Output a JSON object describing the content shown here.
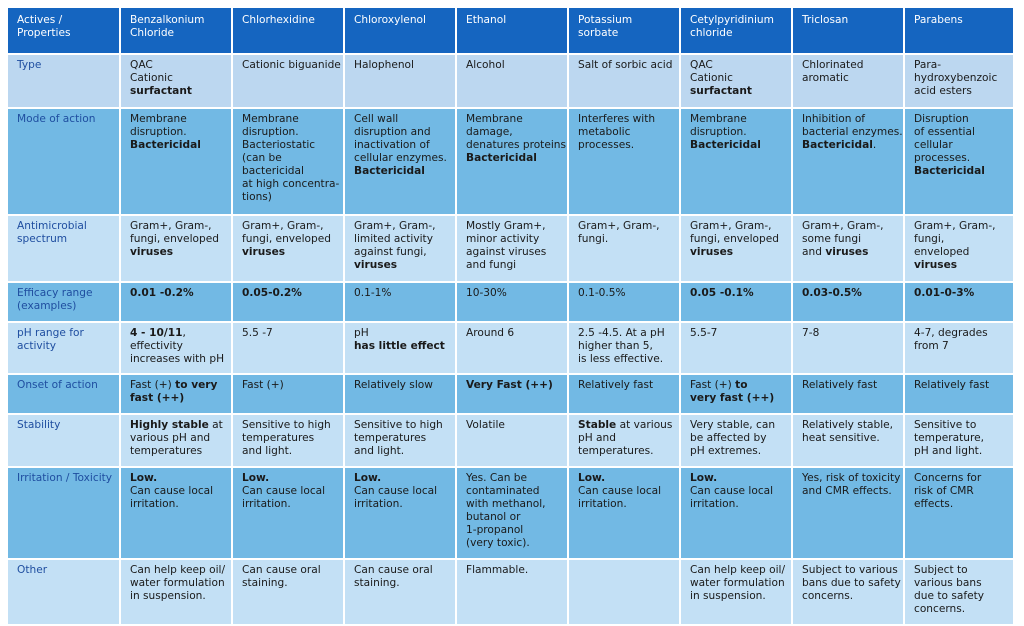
{
  "header": [
    "Actives / Properties",
    "Benzalkonium Chloride",
    "Chlorhexidine",
    "Chloroxylenol",
    "Ethanol",
    "Potassium sorbate",
    "Cetylpyridinium chloride",
    "Triclosan",
    "Parabens"
  ],
  "rows": [
    {
      "label": "Type",
      "cells": [
        [
          [
            "QAC"
          ],
          [
            "Cationic"
          ],
          [
            "**surfactant**"
          ]
        ],
        [
          [
            "Cationic biguanide"
          ]
        ],
        [
          [
            "Halophenol"
          ]
        ],
        [
          [
            "Alcohol"
          ]
        ],
        [
          [
            "Salt of sorbic acid"
          ]
        ],
        [
          [
            "QAC"
          ],
          [
            "Cationic"
          ],
          [
            "**surfactant**"
          ]
        ],
        [
          [
            "Chlorinated"
          ],
          [
            "aromatic"
          ]
        ],
        [
          [
            "Para-"
          ],
          [
            "hydroxybenzoic"
          ],
          [
            " acid esters"
          ]
        ]
      ]
    },
    {
      "label": "Mode of action",
      "cells": [
        [
          [
            "Membrane"
          ],
          [
            "disruption."
          ],
          [
            "**Bactericidal**"
          ]
        ],
        [
          [
            "Membrane"
          ],
          [
            "disruption."
          ],
          [
            "Bacteriostatic"
          ],
          [
            "(can be"
          ],
          [
            "bactericidal"
          ],
          [
            "at high concentra-"
          ],
          [
            "tions)"
          ]
        ],
        [
          [
            "Cell wall"
          ],
          [
            "disruption and"
          ],
          [
            "inactivation of"
          ],
          [
            "cellular enzymes."
          ],
          [
            "**Bactericidal**"
          ]
        ],
        [
          [
            "Membrane"
          ],
          [
            "damage,"
          ],
          [
            "denatures proteins."
          ],
          [
            "**Bactericidal**"
          ]
        ],
        [
          [
            "Interferes with"
          ],
          [
            "metabolic"
          ],
          [
            "processes."
          ]
        ],
        [
          [
            "Membrane"
          ],
          [
            "disruption."
          ],
          [
            "**Bactericidal**"
          ]
        ],
        [
          [
            "Inhibition of"
          ],
          [
            "bacterial enzymes."
          ],
          [
            "**Bactericidal**",
            "."
          ]
        ],
        [
          [
            "Disruption"
          ],
          [
            "of essential"
          ],
          [
            "cellular"
          ],
          [
            "processes."
          ],
          [
            "**Bactericidal**"
          ]
        ]
      ]
    },
    {
      "label": "Antimicrobial spectrum",
      "cells": [
        [
          [
            "Gram+, Gram-,"
          ],
          [
            "fungi, enveloped"
          ],
          [
            "**viruses**"
          ]
        ],
        [
          [
            "Gram+, Gram-,"
          ],
          [
            "fungi, enveloped"
          ],
          [
            "**viruses**"
          ]
        ],
        [
          [
            "Gram+, Gram-,"
          ],
          [
            "limited activity"
          ],
          [
            "against fungi,"
          ],
          [
            "**viruses**"
          ]
        ],
        [
          [
            "Mostly Gram+,"
          ],
          [
            "minor activity"
          ],
          [
            "against viruses"
          ],
          [
            "and fungi"
          ]
        ],
        [
          [
            "Gram+, Gram-,"
          ],
          [
            "fungi."
          ]
        ],
        [
          [
            "Gram+, Gram-,"
          ],
          [
            "fungi, enveloped"
          ],
          [
            "**viruses**"
          ]
        ],
        [
          [
            "Gram+, Gram-,"
          ],
          [
            "some fungi"
          ],
          [
            "and ",
            "**viruses**"
          ]
        ],
        [
          [
            "Gram+, Gram-,"
          ],
          [
            "fungi,"
          ],
          [
            "enveloped"
          ],
          [
            "**viruses**"
          ]
        ]
      ]
    },
    {
      "label": "Efficacy range (examples)",
      "cells": [
        [
          [
            "**0.01 -0.2%**"
          ]
        ],
        [
          [
            "**0.05-0.2%**"
          ]
        ],
        [
          [
            "0.1-1%"
          ]
        ],
        [
          [
            "10-30%"
          ]
        ],
        [
          [
            "0.1-0.5%"
          ]
        ],
        [
          [
            "**0.05 -0.1%**"
          ]
        ],
        [
          [
            "**0.03-0.5%**"
          ]
        ],
        [
          [
            "**0.01-0-3%**"
          ]
        ]
      ]
    },
    {
      "label": "pH range for activity",
      "cells": [
        [
          [
            "**4 - 10/11**",
            ","
          ],
          [
            "effectivity"
          ],
          [
            "increases with pH"
          ]
        ],
        [
          [
            "5.5 -7"
          ]
        ],
        [
          [
            "pH"
          ],
          [
            "**has little effect**"
          ]
        ],
        [
          [
            "Around 6"
          ]
        ],
        [
          [
            "2.5 -4.5. At a pH"
          ],
          [
            "higher than 5,"
          ],
          [
            "is less effective."
          ]
        ],
        [
          [
            "5.5-7"
          ]
        ],
        [
          [
            "7-8"
          ]
        ],
        [
          [
            "4-7, degrades"
          ],
          [
            "from 7"
          ]
        ]
      ]
    },
    {
      "label": "Onset of action",
      "cells": [
        [
          [
            "Fast (+) ",
            "**to very**"
          ],
          [
            "**fast (++)**"
          ]
        ],
        [
          [
            "Fast (+)"
          ]
        ],
        [
          [
            "Relatively slow"
          ]
        ],
        [
          [
            "**Very Fast (++)**"
          ]
        ],
        [
          [
            "Relatively fast"
          ]
        ],
        [
          [
            "Fast (+) ",
            "**to**"
          ],
          [
            "**very fast (++)**"
          ]
        ],
        [
          [
            "Relatively fast"
          ]
        ],
        [
          [
            "Relatively fast"
          ]
        ]
      ]
    },
    {
      "label": "Stability",
      "cells": [
        [
          [
            "**Highly stable**",
            " at"
          ],
          [
            "various pH and"
          ],
          [
            "temperatures"
          ]
        ],
        [
          [
            "Sensitive to high"
          ],
          [
            "temperatures"
          ],
          [
            "and light."
          ]
        ],
        [
          [
            "Sensitive to high"
          ],
          [
            "temperatures"
          ],
          [
            "and light."
          ]
        ],
        [
          [
            "Volatile"
          ]
        ],
        [
          [
            "**Stable**",
            " at various"
          ],
          [
            "pH and"
          ],
          [
            "temperatures."
          ]
        ],
        [
          [
            "Very stable, can"
          ],
          [
            "be affected by"
          ],
          [
            "pH extremes."
          ]
        ],
        [
          [
            "Relatively stable,"
          ],
          [
            "heat sensitive."
          ]
        ],
        [
          [
            "Sensitive to"
          ],
          [
            "temperature,"
          ],
          [
            "pH and light."
          ]
        ]
      ]
    },
    {
      "label": "Irritation / Toxicity",
      "cells": [
        [
          [
            "**Low.**"
          ],
          [
            "Can cause local"
          ],
          [
            "irritation."
          ]
        ],
        [
          [
            "**Low.**"
          ],
          [
            "Can cause local"
          ],
          [
            "irritation."
          ]
        ],
        [
          [
            "**Low.**"
          ],
          [
            "Can cause local"
          ],
          [
            "irritation."
          ]
        ],
        [
          [
            "Yes. Can be"
          ],
          [
            "contaminated"
          ],
          [
            "with methanol,"
          ],
          [
            "butanol or"
          ],
          [
            "1-propanol"
          ],
          [
            "(very toxic)."
          ]
        ],
        [
          [
            "**Low.**"
          ],
          [
            "Can cause local"
          ],
          [
            "irritation."
          ]
        ],
        [
          [
            "**Low.**"
          ],
          [
            "Can cause local"
          ],
          [
            "irritation."
          ]
        ],
        [
          [
            "Yes, risk of toxicity"
          ],
          [
            "and CMR effects."
          ]
        ],
        [
          [
            "Concerns for"
          ],
          [
            "risk of CMR"
          ],
          [
            "effects."
          ]
        ]
      ]
    },
    {
      "label": "Other",
      "cells": [
        [
          [
            "Can help keep oil/"
          ],
          [
            "water formulation"
          ],
          [
            "in suspension."
          ]
        ],
        [
          [
            "Can cause oral"
          ],
          [
            "staining."
          ]
        ],
        [
          [
            "Can cause oral"
          ],
          [
            "staining."
          ]
        ],
        [
          [
            "Flammable."
          ]
        ],
        [],
        [
          [
            "Can help keep oil/"
          ],
          [
            "water formulation"
          ],
          [
            "in suspension."
          ]
        ],
        [
          [
            "Subject to various"
          ],
          [
            "bans due to safety"
          ],
          [
            "concerns."
          ]
        ],
        [
          [
            "Subject to"
          ],
          [
            "various bans"
          ],
          [
            "due to safety"
          ],
          [
            "concerns."
          ]
        ]
      ]
    }
  ]
}
